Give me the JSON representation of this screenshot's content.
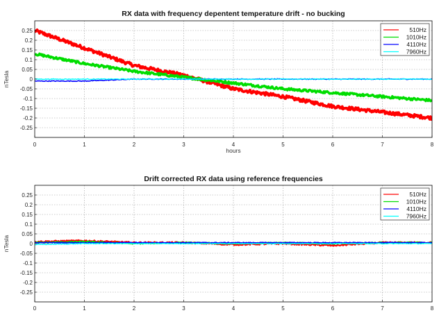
{
  "chart_data": [
    {
      "type": "line",
      "title": "RX data with frequency depentent temperature drift - no bucking",
      "xlabel": "hours",
      "ylabel": "nTesla",
      "xlim": [
        0,
        8
      ],
      "ylim": [
        -0.3,
        0.3
      ],
      "xticks": [
        "0",
        "1",
        "2",
        "3",
        "4",
        "5",
        "6",
        "7",
        "8"
      ],
      "yticks": [
        "0.25",
        "0.2",
        "0.15",
        "0.1",
        "0.05",
        "0",
        "-0.05",
        "-0.1",
        "-0.15",
        "-0.2",
        "-0.25"
      ],
      "grid": true,
      "legend_position": "top-right",
      "series": [
        {
          "name": "510Hz",
          "color": "#ff0000",
          "x": [
            0,
            1,
            2,
            3,
            4,
            5,
            6,
            7,
            8
          ],
          "values": [
            0.25,
            0.16,
            0.07,
            0.02,
            -0.05,
            -0.09,
            -0.14,
            -0.17,
            -0.2
          ]
        },
        {
          "name": "1010Hz",
          "color": "#00dd00",
          "x": [
            0,
            1,
            2,
            3,
            4,
            5,
            6,
            7,
            8
          ],
          "values": [
            0.13,
            0.08,
            0.04,
            0.01,
            -0.02,
            -0.05,
            -0.07,
            -0.09,
            -0.11
          ]
        },
        {
          "name": "4110Hz",
          "color": "#0000ff",
          "x": [
            0,
            1,
            2,
            3,
            4,
            5,
            6,
            7,
            8
          ],
          "values": [
            -0.01,
            -0.01,
            0.0,
            0.0,
            0.0,
            0.0,
            0.0,
            0.0,
            0.0
          ]
        },
        {
          "name": "7960Hz",
          "color": "#00ffff",
          "x": [
            0,
            1,
            2,
            3,
            4,
            5,
            6,
            7,
            8
          ],
          "values": [
            0.0,
            0.0,
            0.0,
            0.0,
            0.0,
            0.0,
            0.0,
            0.0,
            0.0
          ]
        }
      ]
    },
    {
      "type": "line",
      "title": "Drift corrected RX data using reference frequencies",
      "xlabel": "",
      "ylabel": "nTesla",
      "xlim": [
        0,
        8
      ],
      "ylim": [
        -0.3,
        0.3
      ],
      "xticks": [
        "0",
        "1",
        "2",
        "3",
        "4",
        "5",
        "6",
        "7",
        "8"
      ],
      "yticks": [
        "0.25",
        "0.2",
        "0.15",
        "0.1",
        "0.05",
        "0",
        "-0.05",
        "-0.1",
        "-0.15",
        "-0.2",
        "-0.25"
      ],
      "grid": true,
      "legend_position": "top-right",
      "series": [
        {
          "name": "510Hz",
          "color": "#ff0000",
          "x": [
            0,
            1,
            2,
            3,
            4,
            5,
            6,
            7,
            8
          ],
          "values": [
            0.01,
            0.015,
            0.005,
            0.005,
            -0.005,
            0.0,
            -0.01,
            0.005,
            0.005
          ]
        },
        {
          "name": "1010Hz",
          "color": "#00dd00",
          "x": [
            0,
            1,
            2,
            3,
            4,
            5,
            6,
            7,
            8
          ],
          "values": [
            0.005,
            0.01,
            0.0,
            0.005,
            0.0,
            0.005,
            0.0,
            0.005,
            0.005
          ]
        },
        {
          "name": "4110Hz",
          "color": "#0000ff",
          "x": [
            0,
            1,
            2,
            3,
            4,
            5,
            6,
            7,
            8
          ],
          "values": [
            0.005,
            0.005,
            0.005,
            0.005,
            0.005,
            0.005,
            0.005,
            0.005,
            0.005
          ]
        },
        {
          "name": "7960Hz",
          "color": "#00ffff",
          "x": [
            0,
            1,
            2,
            3,
            4,
            5,
            6,
            7,
            8
          ],
          "values": [
            -0.005,
            0.0,
            0.0,
            0.0,
            0.0,
            0.0,
            0.0,
            0.0,
            0.0
          ]
        }
      ]
    }
  ]
}
